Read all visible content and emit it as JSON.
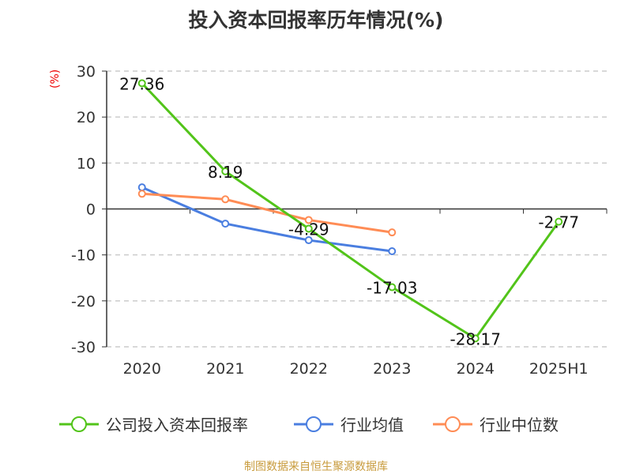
{
  "chart_data": {
    "type": "line",
    "title": "投入资本回报率历年情况(%)",
    "ylabel": "(%)",
    "xlabel": "",
    "categories": [
      "2020",
      "2021",
      "2022",
      "2023",
      "2024",
      "2025H1"
    ],
    "ylim": [
      -30,
      30
    ],
    "yticks": [
      "30",
      "20",
      "10",
      "0",
      "-10",
      "-20",
      "-30"
    ],
    "ytick_values": [
      30,
      20,
      10,
      0,
      -10,
      -20,
      -30
    ],
    "grid": true,
    "legend_position": "bottom",
    "series": [
      {
        "name": "公司投入资本回报率",
        "color": "#52c41a",
        "values": [
          27.36,
          8.19,
          -4.29,
          -17.03,
          -28.17,
          -2.77
        ],
        "labels": [
          "27.36",
          "8.19",
          "-4.29",
          "-17.03",
          "-28.17",
          "-2.77"
        ]
      },
      {
        "name": "行业均值",
        "color": "#4a7ee0",
        "values": [
          4.7,
          -3.2,
          -6.8,
          -9.2,
          null,
          null
        ]
      },
      {
        "name": "行业中位数",
        "color": "#ff8c55",
        "values": [
          3.3,
          2.1,
          -2.4,
          -5.1,
          null,
          null
        ]
      }
    ]
  },
  "source": "制图数据来自恒生聚源数据库"
}
